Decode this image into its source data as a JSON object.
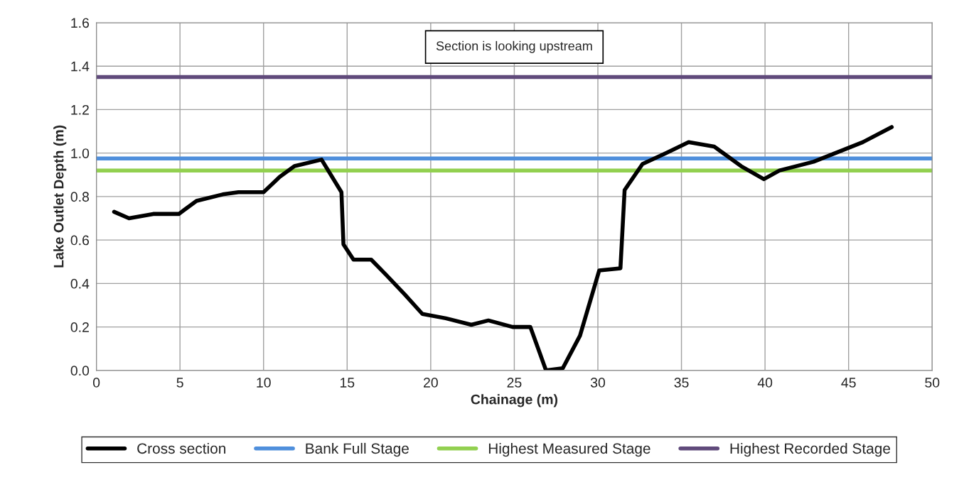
{
  "chart_data": {
    "type": "line",
    "xlabel": "Chainage (m)",
    "ylabel": "Lake Outlet Depth (m)",
    "xlim": [
      0,
      50
    ],
    "xticks": [
      0,
      5,
      10,
      15,
      20,
      25,
      30,
      35,
      40,
      45,
      50
    ],
    "ylim": [
      0,
      1.6
    ],
    "yticks": [
      {
        "value": 0,
        "label": "0.0"
      },
      {
        "value": 0.2,
        "label": "0.2"
      },
      {
        "value": 0.4,
        "label": "0.4"
      },
      {
        "value": 0.6,
        "label": "0.6"
      },
      {
        "value": 0.8,
        "label": "0.8"
      },
      {
        "value": 1.0,
        "label": "1.0"
      },
      {
        "value": 1.2,
        "label": "1.2"
      },
      {
        "value": 1.4,
        "label": "1.4"
      },
      {
        "value": 1.6,
        "label": "1.6"
      }
    ],
    "grid": true,
    "legend": "bottom",
    "marker": "none",
    "line_style": "solid",
    "annotations": [
      "Section is looking upstream"
    ],
    "series": [
      {
        "name": "Cross section",
        "color": "#000000",
        "x": [
          1.06,
          1.95,
          3.4,
          4.93,
          5.99,
          7.56,
          8.5,
          10.0,
          10.96,
          11.85,
          13.47,
          14.66,
          14.78,
          15.38,
          16.44,
          17.33,
          18.44,
          19.5,
          20.9,
          22.43,
          23.45,
          24.9,
          25.96,
          26.9,
          27.9,
          28.93,
          30.08,
          31.35,
          31.6,
          32.67,
          34.07,
          35.43,
          36.96,
          38.57,
          39.93,
          40.87,
          42.9,
          45.84,
          47.58
        ],
        "values": [
          0.73,
          0.7,
          0.72,
          0.72,
          0.78,
          0.81,
          0.82,
          0.82,
          0.89,
          0.94,
          0.97,
          0.82,
          0.58,
          0.51,
          0.51,
          0.44,
          0.35,
          0.26,
          0.24,
          0.21,
          0.23,
          0.2,
          0.2,
          0.0,
          0.01,
          0.16,
          0.46,
          0.47,
          0.83,
          0.95,
          1.0,
          1.05,
          1.03,
          0.94,
          0.88,
          0.92,
          0.96,
          1.05,
          1.12
        ]
      }
    ],
    "ref_lines": [
      {
        "axis": "y",
        "value": 0.975,
        "label": "Bank Full Stage",
        "color": "#4f8fdc"
      },
      {
        "axis": "y",
        "value": 0.92,
        "label": "Highest Measured Stage",
        "color": "#92d050"
      },
      {
        "axis": "y",
        "value": 1.35,
        "label": "Highest Recorded Stage",
        "color": "#604a7b"
      }
    ]
  }
}
